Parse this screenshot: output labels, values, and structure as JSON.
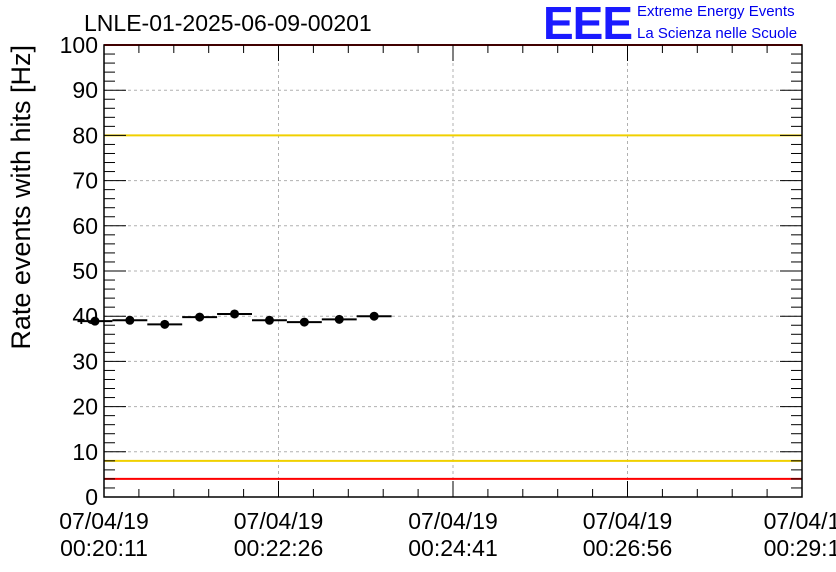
{
  "title": "LNLE-01-2025-06-09-00201",
  "logo": {
    "mark": "EEE",
    "line1": "Extreme Energy Events",
    "line2": "La Scienza nelle Scuole"
  },
  "colors": {
    "red_limit": "#ff0000",
    "yellow_limit": "#f0d000",
    "marker": "#000000",
    "grid": "#b0b0b0"
  },
  "chart_data": {
    "type": "scatter",
    "title": "LNLE-01-2025-06-09-00201",
    "ylabel": "Rate events with hits [Hz]",
    "xlabel": "",
    "ylim": [
      0,
      100
    ],
    "y_ticks": [
      0,
      10,
      20,
      30,
      40,
      50,
      60,
      70,
      80,
      90,
      100
    ],
    "x_ticks": [
      {
        "date": "07/04/19",
        "time": "00:20:11"
      },
      {
        "date": "07/04/19",
        "time": "00:22:26"
      },
      {
        "date": "07/04/19",
        "time": "00:24:41"
      },
      {
        "date": "07/04/19",
        "time": "00:26:56"
      },
      {
        "date": "07/04/1",
        "time": "00:29:1"
      }
    ],
    "grid": true,
    "bin_width_s": 27,
    "points": [
      {
        "time": "00:20:04",
        "value": 38.9
      },
      {
        "time": "00:20:31",
        "value": 39.1
      },
      {
        "time": "00:20:58",
        "value": 38.2
      },
      {
        "time": "00:21:25",
        "value": 39.8
      },
      {
        "time": "00:21:52",
        "value": 40.5
      },
      {
        "time": "00:22:19",
        "value": 39.1
      },
      {
        "time": "00:22:46",
        "value": 38.7
      },
      {
        "time": "00:23:13",
        "value": 39.3
      },
      {
        "time": "00:23:40",
        "value": 40.0
      }
    ],
    "reference_lines": [
      {
        "value": 100,
        "color": "red"
      },
      {
        "value": 80,
        "color": "yellow"
      },
      {
        "value": 8,
        "color": "yellow"
      },
      {
        "value": 4,
        "color": "red"
      }
    ]
  }
}
